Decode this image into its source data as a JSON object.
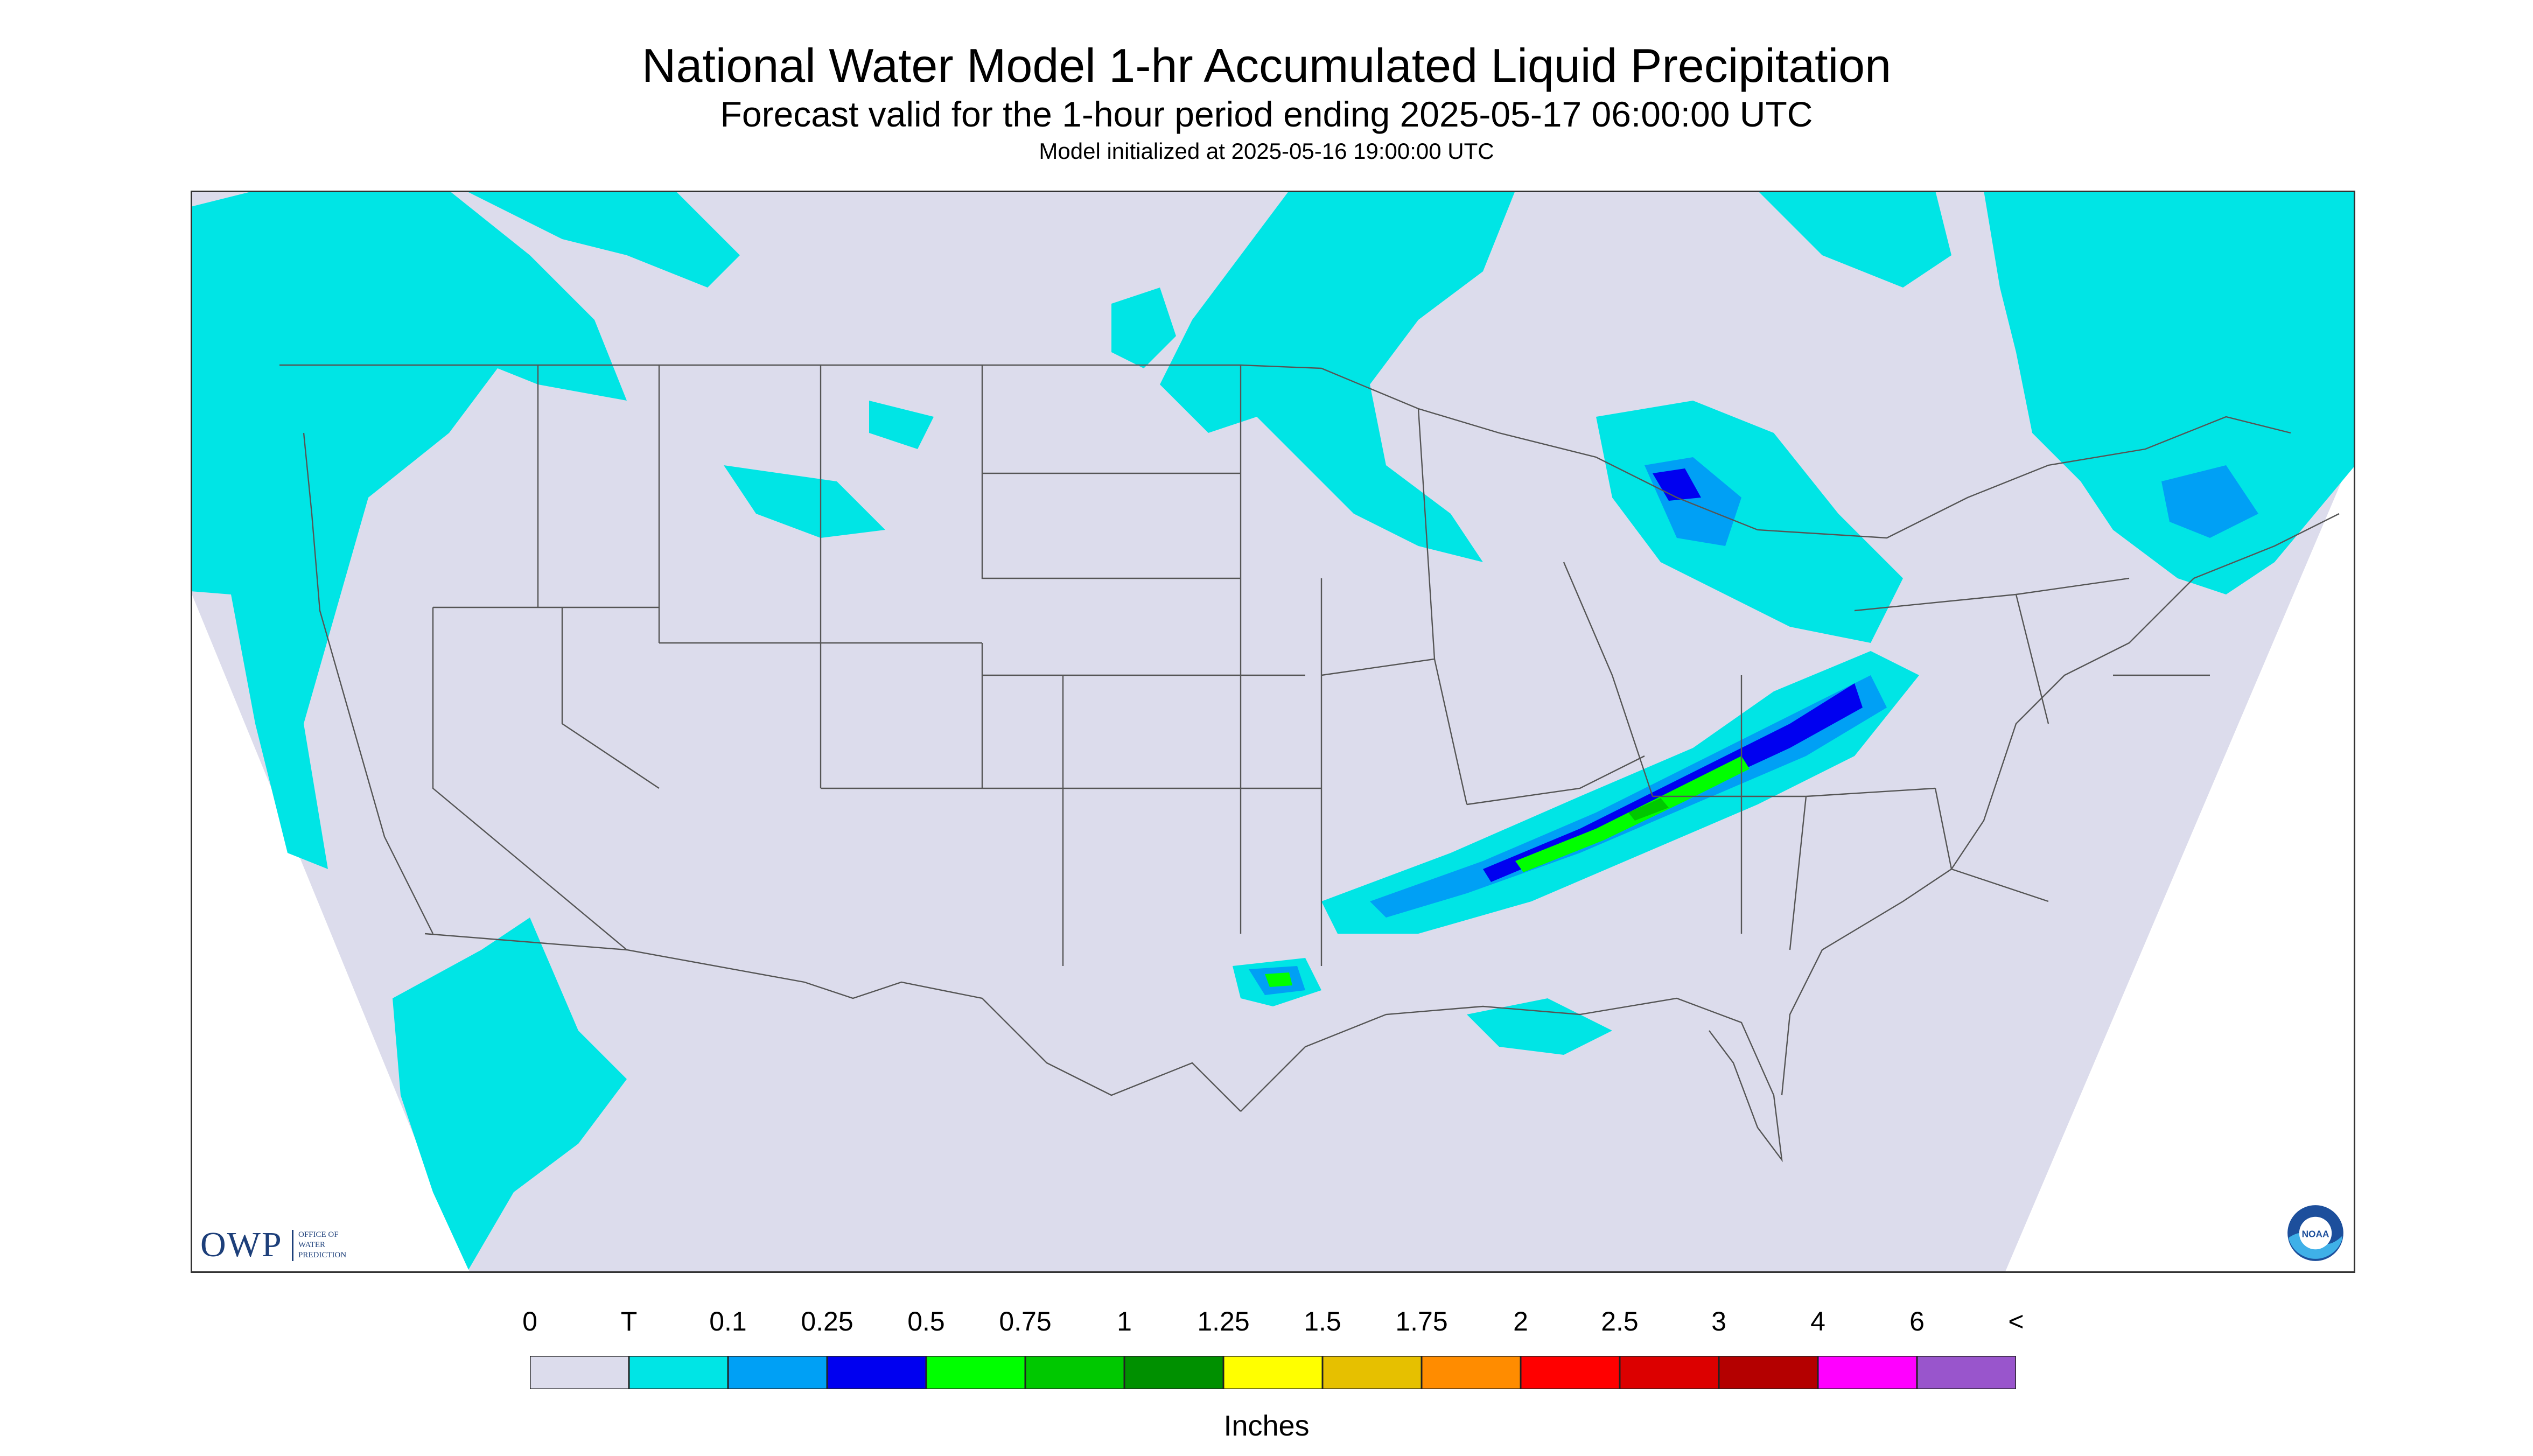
{
  "title": "National Water Model 1-hr Accumulated Liquid Precipitation",
  "subtitle": "Forecast valid for the 1-hour period ending 2025-05-17 06:00:00 UTC",
  "init_text": "Model initialized at 2025-05-16 19:00:00 UTC",
  "map": {
    "region": "CONUS",
    "background_color": "#dcdcec",
    "outside_domain_color": "#ffffff",
    "boundary_color": "#555555"
  },
  "logos": {
    "owp_text": "OWP",
    "owp_subtext": "OFFICE OF\nWATER\nPREDICTION",
    "noaa_text": "NOAA"
  },
  "legend": {
    "units": "Inches",
    "tick_labels": [
      "0",
      "T",
      "0.1",
      "0.25",
      "0.5",
      "0.75",
      "1",
      "1.25",
      "1.5",
      "1.75",
      "2",
      "2.5",
      "3",
      "4",
      "6",
      "<"
    ],
    "colors": [
      "#dcdcec",
      "#00e5e5",
      "#00a0f5",
      "#0000f0",
      "#00ff00",
      "#00c800",
      "#009000",
      "#ffff00",
      "#e6c000",
      "#ff8c00",
      "#ff0000",
      "#dc0000",
      "#b40000",
      "#ff00ff",
      "#9955cc"
    ]
  },
  "precip_areas": [
    {
      "name": "Pacific Northwest",
      "max_level": "T"
    },
    {
      "name": "Southern California coast",
      "max_level": "T"
    },
    {
      "name": "Northern Plains / Upper Midwest",
      "max_level": "0.1"
    },
    {
      "name": "Great Lakes (Michigan)",
      "max_level": "0.25"
    },
    {
      "name": "Ohio Valley to Mid-Atlantic",
      "max_level": "0.75"
    },
    {
      "name": "Tennessee Valley band",
      "max_level": "0.75"
    },
    {
      "name": "Northeast / New England",
      "max_level": "0.25"
    },
    {
      "name": "East Texas",
      "max_level": "0.5"
    }
  ]
}
